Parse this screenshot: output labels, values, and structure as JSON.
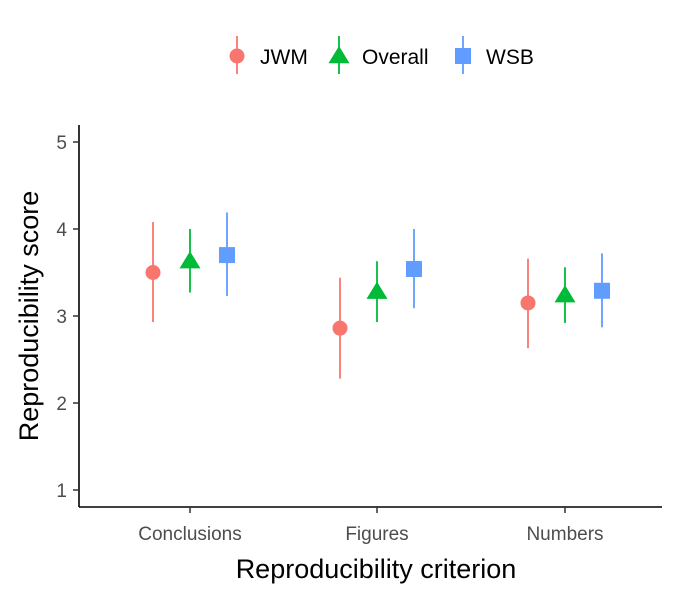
{
  "chart_data": {
    "type": "scatter",
    "subtype": "point-range with error bars",
    "title": "",
    "xlabel": "Reproducibility criterion",
    "ylabel": "Reproducibility score",
    "categories": [
      "Conclusions",
      "Figures",
      "Numbers"
    ],
    "ylim": [
      1,
      5
    ],
    "yticks": [
      "1",
      "2",
      "3",
      "4",
      "5"
    ],
    "grid": false,
    "legend_position": "top",
    "series": [
      {
        "name": "JWM",
        "color": "#F8766D",
        "marker": "circle",
        "values": [
          3.5,
          2.86,
          3.15
        ],
        "lower": [
          2.93,
          2.28,
          2.63
        ],
        "upper": [
          4.08,
          3.44,
          3.66
        ]
      },
      {
        "name": "Overall",
        "color": "#00BA38",
        "marker": "triangle",
        "values": [
          3.63,
          3.28,
          3.24
        ],
        "lower": [
          3.27,
          2.93,
          2.92
        ],
        "upper": [
          4.0,
          3.63,
          3.56
        ]
      },
      {
        "name": "WSB",
        "color": "#619CFF",
        "marker": "square",
        "values": [
          3.7,
          3.54,
          3.29
        ],
        "lower": [
          3.23,
          3.09,
          2.87
        ],
        "upper": [
          4.19,
          4.0,
          3.72
        ]
      }
    ]
  }
}
